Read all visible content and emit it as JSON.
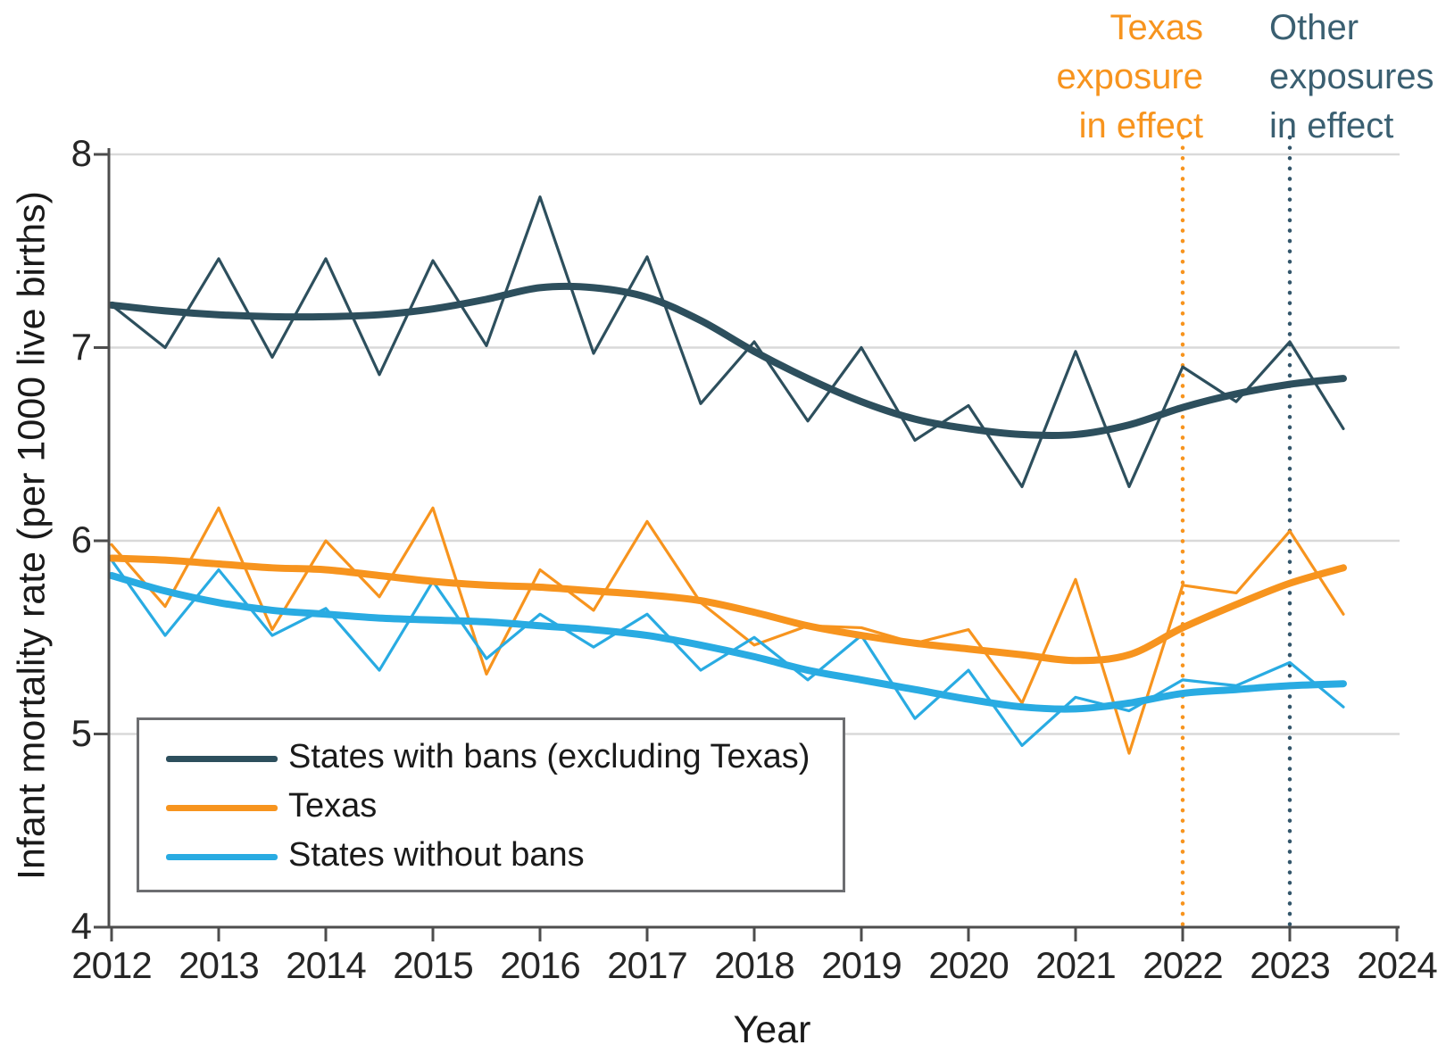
{
  "figure": {
    "y_axis": {
      "title": "Infant mortality rate (per 1000 live births)",
      "ticks": [
        8,
        7,
        6,
        5,
        4
      ]
    },
    "x_axis": {
      "title": "Year",
      "ticks": [
        2012,
        2013,
        2014,
        2015,
        2016,
        2017,
        2018,
        2019,
        2020,
        2021,
        2022,
        2023,
        2024
      ]
    },
    "annotations": {
      "texas": {
        "line1": "Texas",
        "line2": "exposure",
        "line3": "in effect",
        "color": "#F7941E"
      },
      "other": {
        "line1": "Other",
        "line2": "exposures",
        "line3": "in effect",
        "color": "#3A5F71"
      }
    },
    "legend": {
      "items": [
        {
          "label": "States with bans (excluding Texas)",
          "color": "#2D4F5D"
        },
        {
          "label": "Texas",
          "color": "#F7941E"
        },
        {
          "label": "States without bans",
          "color": "#29ABE2"
        }
      ]
    }
  },
  "chart_data": {
    "type": "line",
    "title": "",
    "xlabel": "Year",
    "ylabel": "Infant mortality rate (per 1000 live births)",
    "xlim": [
      2012,
      2024
    ],
    "ylim": [
      4,
      8
    ],
    "gridlines": [
      5,
      6,
      7,
      8
    ],
    "grid_color": "#d9d9d9",
    "axis_color": "#4d4d4d",
    "x": [
      2012.0,
      2012.5,
      2013.0,
      2013.5,
      2014.0,
      2014.5,
      2015.0,
      2015.5,
      2016.0,
      2016.5,
      2017.0,
      2017.5,
      2018.0,
      2018.5,
      2019.0,
      2019.5,
      2020.0,
      2020.5,
      2021.0,
      2021.5,
      2022.0,
      2022.5,
      2023.0,
      2023.5
    ],
    "series": [
      {
        "name": "States with bans (excluding Texas) - observed",
        "color": "#2D4F5D",
        "width": 3.2,
        "smooth": false,
        "values": [
          7.22,
          7.0,
          7.46,
          6.95,
          7.46,
          6.86,
          7.45,
          7.01,
          7.78,
          6.97,
          7.47,
          6.71,
          7.03,
          6.62,
          7.0,
          6.52,
          6.7,
          6.28,
          6.98,
          6.28,
          6.9,
          6.72,
          7.03,
          6.58
        ]
      },
      {
        "name": "States with bans (excluding Texas) - smoothed trend",
        "color": "#2D4F5D",
        "width": 8,
        "smooth": true,
        "values": [
          7.22,
          7.19,
          7.17,
          7.16,
          7.16,
          7.17,
          7.2,
          7.25,
          7.31,
          7.31,
          7.26,
          7.14,
          6.98,
          6.84,
          6.72,
          6.63,
          6.58,
          6.55,
          6.55,
          6.6,
          6.69,
          6.76,
          6.81,
          6.84
        ]
      },
      {
        "name": "Texas - observed",
        "color": "#F7941E",
        "width": 3.2,
        "smooth": false,
        "values": [
          5.98,
          5.66,
          6.17,
          5.54,
          6.0,
          5.71,
          6.17,
          5.31,
          5.85,
          5.64,
          6.1,
          5.68,
          5.46,
          5.56,
          5.55,
          5.47,
          5.54,
          5.16,
          5.8,
          4.9,
          5.77,
          5.73,
          6.05,
          5.62
        ]
      },
      {
        "name": "Texas - smoothed trend",
        "color": "#F7941E",
        "width": 8,
        "smooth": true,
        "values": [
          5.91,
          5.9,
          5.88,
          5.86,
          5.85,
          5.82,
          5.79,
          5.77,
          5.76,
          5.74,
          5.72,
          5.69,
          5.63,
          5.56,
          5.51,
          5.47,
          5.44,
          5.41,
          5.38,
          5.41,
          5.55,
          5.67,
          5.78,
          5.86
        ]
      },
      {
        "name": "States without bans - observed",
        "color": "#29ABE2",
        "width": 3.2,
        "smooth": false,
        "values": [
          5.9,
          5.51,
          5.85,
          5.51,
          5.65,
          5.33,
          5.79,
          5.39,
          5.62,
          5.45,
          5.62,
          5.33,
          5.5,
          5.28,
          5.51,
          5.08,
          5.33,
          4.94,
          5.19,
          5.12,
          5.28,
          5.25,
          5.37,
          5.14
        ]
      },
      {
        "name": "States without bans - smoothed trend",
        "color": "#29ABE2",
        "width": 8,
        "smooth": true,
        "values": [
          5.82,
          5.74,
          5.68,
          5.64,
          5.62,
          5.6,
          5.59,
          5.58,
          5.56,
          5.54,
          5.51,
          5.46,
          5.4,
          5.33,
          5.28,
          5.23,
          5.18,
          5.14,
          5.13,
          5.16,
          5.21,
          5.23,
          5.25,
          5.26
        ]
      }
    ],
    "vlines": [
      {
        "x": 2022,
        "color": "#F7941E",
        "style": "dotted",
        "label": "Texas exposure in effect"
      },
      {
        "x": 2023,
        "color": "#33566B",
        "style": "dotted",
        "label": "Other exposures in effect"
      }
    ],
    "legend_position": "lower-left"
  }
}
